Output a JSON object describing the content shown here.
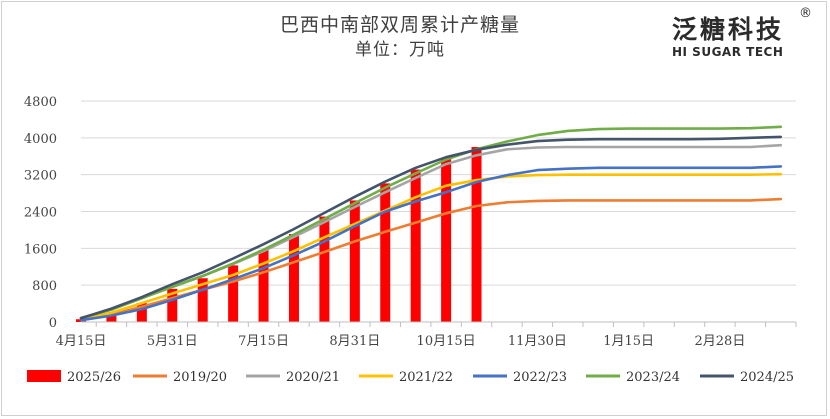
{
  "header": {
    "title": "巴西中南部双周累计产糖量",
    "unit": "单位：万吨"
  },
  "logo": {
    "cn": "泛糖科技",
    "reg": "®",
    "en": "HI SUGAR TECH"
  },
  "chart_data": {
    "type": "bar+line",
    "title": "巴西中南部双周累计产糖量",
    "subtitle": "单位：万吨",
    "ylim": [
      0,
      4800
    ],
    "yticks": [
      0,
      800,
      1600,
      2400,
      3200,
      4000,
      4800
    ],
    "xlabels": [
      {
        "label": "4月15日",
        "idx": 0
      },
      {
        "label": "5月31日",
        "idx": 3
      },
      {
        "label": "7月15日",
        "idx": 6
      },
      {
        "label": "8月31日",
        "idx": 9
      },
      {
        "label": "10月15日",
        "idx": 12
      },
      {
        "label": "11月30日",
        "idx": 15
      },
      {
        "label": "1月15日",
        "idx": 18
      },
      {
        "label": "2月28日",
        "idx": 21
      }
    ],
    "n_periods": 24,
    "grid": true,
    "legend_position": "bottom",
    "bar_series": {
      "name": "2025/26",
      "color": "#ff0000",
      "values": [
        60,
        130,
        410,
        720,
        950,
        1230,
        1560,
        1910,
        2290,
        2640,
        3010,
        3310,
        3540,
        3800
      ]
    },
    "series": [
      {
        "name": "2019/20",
        "color": "#ed7d31",
        "values": [
          40,
          160,
          330,
          520,
          700,
          880,
          1080,
          1300,
          1520,
          1750,
          1960,
          2160,
          2360,
          2520,
          2600,
          2630,
          2640,
          2640,
          2640,
          2640,
          2640,
          2640,
          2640,
          2670
        ]
      },
      {
        "name": "2020/21",
        "color": "#a5a5a5",
        "values": [
          80,
          270,
          520,
          770,
          1000,
          1260,
          1540,
          1850,
          2170,
          2500,
          2820,
          3130,
          3430,
          3620,
          3750,
          3790,
          3800,
          3800,
          3800,
          3800,
          3800,
          3800,
          3800,
          3840
        ]
      },
      {
        "name": "2021/22",
        "color": "#ffc000",
        "values": [
          50,
          200,
          410,
          620,
          820,
          1020,
          1270,
          1540,
          1840,
          2130,
          2420,
          2710,
          2960,
          3080,
          3160,
          3190,
          3200,
          3200,
          3200,
          3200,
          3200,
          3200,
          3200,
          3210
        ]
      },
      {
        "name": "2022/23",
        "color": "#4472c4",
        "values": [
          40,
          140,
          280,
          480,
          700,
          930,
          1170,
          1450,
          1750,
          2080,
          2400,
          2620,
          2820,
          3040,
          3190,
          3300,
          3330,
          3350,
          3350,
          3350,
          3350,
          3350,
          3350,
          3380
        ]
      },
      {
        "name": "2023/24",
        "color": "#70ad47",
        "values": [
          90,
          270,
          520,
          760,
          1000,
          1270,
          1570,
          1900,
          2240,
          2580,
          2920,
          3230,
          3530,
          3750,
          3920,
          4060,
          4150,
          4190,
          4200,
          4200,
          4200,
          4200,
          4210,
          4240
        ]
      },
      {
        "name": "2024/25",
        "color": "#44546a",
        "values": [
          80,
          290,
          540,
          820,
          1080,
          1380,
          1690,
          2020,
          2370,
          2720,
          3050,
          3350,
          3580,
          3740,
          3850,
          3930,
          3960,
          3970,
          3970,
          3970,
          3970,
          3980,
          4000,
          4020
        ]
      }
    ]
  }
}
